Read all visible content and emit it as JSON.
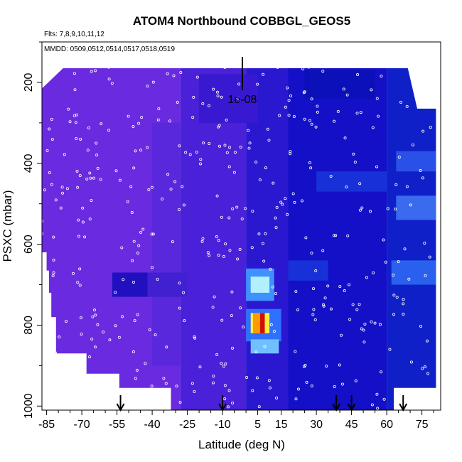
{
  "chart_data": {
    "type": "heatmap",
    "title": "ATOM4 Northbound COBBGL_GEOS5",
    "subtitle_flights": "Flts: 7,8,9,10,11,12",
    "subtitle_dates": "MMDD: 0509,0512,0514,0517,0518,0519",
    "scale_label": "1e-08",
    "xlabel": "Latitude (deg N)",
    "ylabel": "PSXC (mbar)",
    "xlim": [
      -87,
      83
    ],
    "ylim": [
      1010,
      100
    ],
    "x_ticks": [
      -85,
      -70,
      -55,
      -40,
      -25,
      -10,
      5,
      15,
      30,
      45,
      60,
      75
    ],
    "x_minor_ticks": [
      -80,
      -75,
      -65,
      -60,
      -50,
      -45,
      -35,
      -30,
      -20,
      -15,
      -5,
      0,
      10,
      20,
      25,
      35,
      40,
      50,
      55,
      65,
      70,
      80
    ],
    "y_ticks": [
      200,
      400,
      600,
      800,
      1000
    ],
    "y_minor_ticks": [
      100,
      300,
      500,
      700,
      900
    ],
    "grid": false,
    "legend": "none",
    "colors": {
      "background_purple": "#6b2ce0",
      "dark_blue": "#0a10c8",
      "highlight_cyan": "#8fe6ff",
      "hotspot_red": "#d01000",
      "hotspot_orange": "#ff9a00",
      "hotspot_yellow": "#ffee40"
    },
    "top_boundary": [
      {
        "lat": -87,
        "p": 215
      },
      {
        "lat": -78,
        "p": 165
      },
      {
        "lat": 69,
        "p": 165
      },
      {
        "lat": 73,
        "p": 265
      },
      {
        "lat": 83,
        "p": 265
      }
    ],
    "bottom_boundary": [
      {
        "lat": -87,
        "p": 620
      },
      {
        "lat": -85,
        "p": 620
      },
      {
        "lat": -85,
        "p": 665
      },
      {
        "lat": -84,
        "p": 665
      },
      {
        "lat": -84,
        "p": 720
      },
      {
        "lat": -83,
        "p": 720
      },
      {
        "lat": -83,
        "p": 780
      },
      {
        "lat": -81,
        "p": 780
      },
      {
        "lat": -81,
        "p": 870
      },
      {
        "lat": -68,
        "p": 870
      },
      {
        "lat": -68,
        "p": 920
      },
      {
        "lat": -54,
        "p": 920
      },
      {
        "lat": -54,
        "p": 955
      },
      {
        "lat": -32,
        "p": 955
      },
      {
        "lat": -32,
        "p": 1010
      },
      {
        "lat": 63,
        "p": 1010
      },
      {
        "lat": 63,
        "p": 955
      },
      {
        "lat": 81,
        "p": 955
      },
      {
        "lat": 81,
        "p": 265
      }
    ],
    "regions": [
      {
        "lat": [
          -87,
          -28
        ],
        "p": [
          160,
          1010
        ],
        "color": "#6a2ae0"
      },
      {
        "lat": [
          -28,
          0
        ],
        "p": [
          160,
          1010
        ],
        "color": "#4a20d8"
      },
      {
        "lat": [
          0,
          18
        ],
        "p": [
          160,
          1010
        ],
        "color": "#2a18d0"
      },
      {
        "lat": [
          18,
          60
        ],
        "p": [
          160,
          1010
        ],
        "color": "#1410c8"
      },
      {
        "lat": [
          60,
          83
        ],
        "p": [
          160,
          1010
        ],
        "color": "#1020c8"
      },
      {
        "lat": [
          -40,
          -28
        ],
        "p": [
          300,
          900
        ],
        "color": "#5a28dc"
      },
      {
        "lat": [
          -20,
          5
        ],
        "p": [
          180,
          300
        ],
        "color": "#3818d0"
      },
      {
        "lat": [
          25,
          55
        ],
        "p": [
          170,
          240
        ],
        "color": "#0c10b8"
      },
      {
        "lat": [
          -57,
          -42
        ],
        "p": [
          670,
          730
        ],
        "color": "#2010c0"
      },
      {
        "lat": [
          -42,
          -25
        ],
        "p": [
          670,
          730
        ],
        "color": "#4020d0"
      },
      {
        "lat": [
          0,
          12
        ],
        "p": [
          660,
          740
        ],
        "color": "#4090ff"
      },
      {
        "lat": [
          2,
          10
        ],
        "p": [
          680,
          720
        ],
        "color": "#b0f0ff"
      },
      {
        "lat": [
          0,
          15
        ],
        "p": [
          760,
          840
        ],
        "color": "#3070ff"
      },
      {
        "lat": [
          2,
          14
        ],
        "p": [
          835,
          870
        ],
        "color": "#70c0ff"
      },
      {
        "lat": [
          2,
          10
        ],
        "p": [
          770,
          820
        ],
        "color": "#ffee40"
      },
      {
        "lat": [
          3,
          7
        ],
        "p": [
          770,
          820
        ],
        "color": "#ff9a00"
      },
      {
        "lat": [
          6,
          8
        ],
        "p": [
          770,
          820
        ],
        "color": "#d01000"
      },
      {
        "lat": [
          64,
          81
        ],
        "p": [
          480,
          540
        ],
        "color": "#3a6aee"
      },
      {
        "lat": [
          64,
          81
        ],
        "p": [
          370,
          420
        ],
        "color": "#2a50e8"
      },
      {
        "lat": [
          62,
          81
        ],
        "p": [
          640,
          700
        ],
        "color": "#2a60ee"
      },
      {
        "lat": [
          30,
          60
        ],
        "p": [
          420,
          470
        ],
        "color": "#1830d8"
      },
      {
        "lat": [
          18,
          35
        ],
        "p": [
          640,
          690
        ],
        "color": "#1830d8"
      }
    ],
    "observation_lats": [
      -53.5,
      -10,
      38.5,
      45,
      67
    ]
  }
}
